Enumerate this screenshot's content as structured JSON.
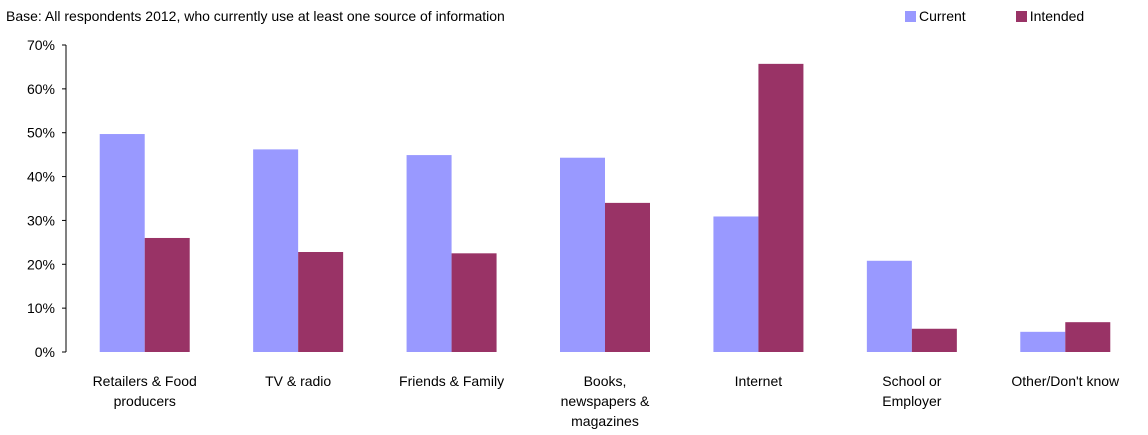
{
  "chart_data": {
    "type": "bar",
    "subtitle": "Base: All respondents 2012, who currently use at least one source of information",
    "categories": [
      [
        "Retailers & Food",
        "producers"
      ],
      [
        "TV & radio"
      ],
      [
        "Friends & Family"
      ],
      [
        "Books,",
        "newspapers &",
        "magazines"
      ],
      [
        "Internet"
      ],
      [
        "School or",
        "Employer"
      ],
      [
        "Other/Don't know"
      ]
    ],
    "series": [
      {
        "name": "Current",
        "color": "#9999ff",
        "values": [
          49.7,
          46.2,
          44.9,
          44.3,
          30.9,
          20.8,
          4.6
        ]
      },
      {
        "name": "Intended",
        "color": "#993366",
        "values": [
          26.0,
          22.8,
          22.5,
          34.0,
          65.7,
          5.3,
          6.8
        ]
      }
    ],
    "yticks": [
      "0%",
      "10%",
      "20%",
      "30%",
      "40%",
      "50%",
      "60%",
      "70%"
    ],
    "ylim": [
      0,
      70
    ],
    "legend_position": "top-right",
    "grid": false
  }
}
